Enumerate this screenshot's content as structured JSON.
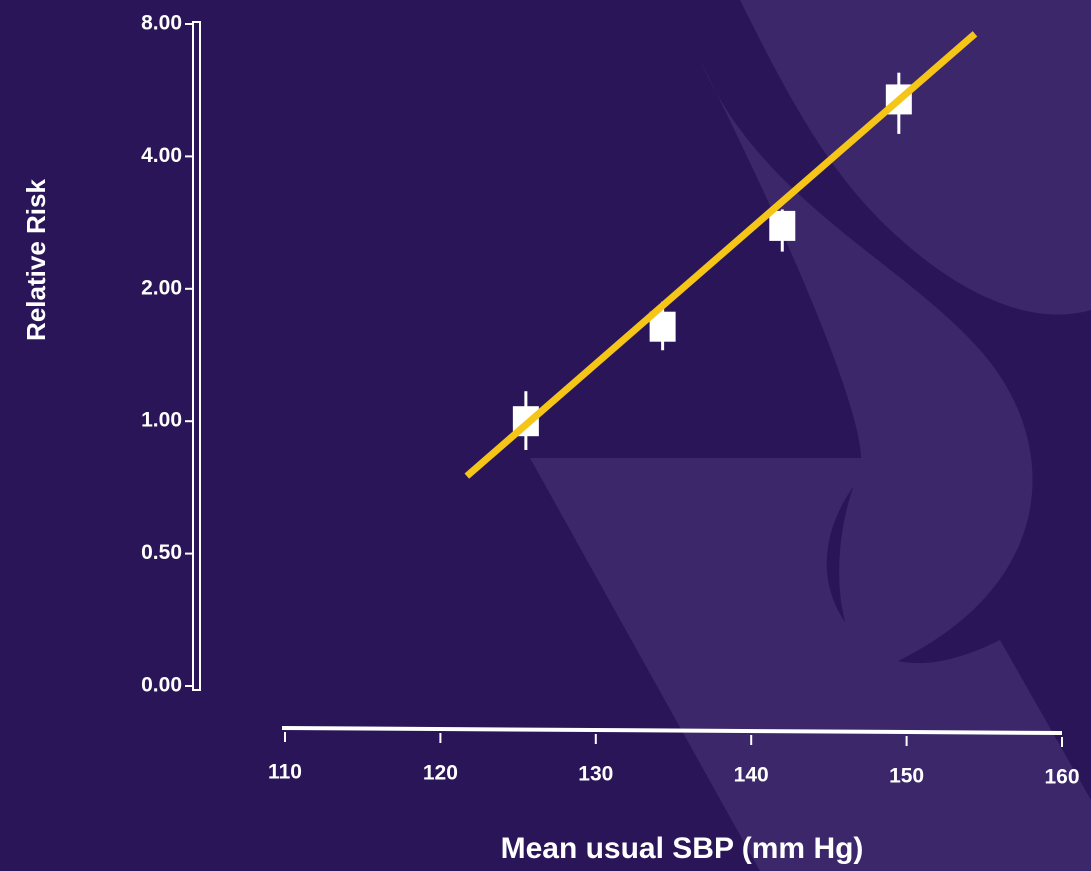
{
  "chart_data": {
    "type": "scatter",
    "y_label": "Relative Risk",
    "x_label": "Mean usual SBP (mm Hg)",
    "yscale": "log",
    "ylim": [
      0,
      8
    ],
    "yticks": [
      {
        "value": 0,
        "label": "0.00"
      },
      {
        "value": 0.5,
        "label": "0.50"
      },
      {
        "value": 1,
        "label": "1.00"
      },
      {
        "value": 2,
        "label": "2.00"
      },
      {
        "value": 4,
        "label": "4.00"
      },
      {
        "value": 8,
        "label": "8.00"
      }
    ],
    "xlim": [
      110,
      160
    ],
    "xticks": [
      110,
      120,
      130,
      140,
      150,
      160
    ],
    "series": [
      {
        "color": "#ffffff",
        "x": [
          125.5,
          134.3,
          142.0,
          149.5
        ],
        "values": [
          1.0,
          1.64,
          2.78,
          5.39
        ],
        "lower": [
          0.86,
          1.45,
          2.43,
          4.5
        ],
        "upper": [
          1.17,
          1.87,
          3.03,
          6.2
        ]
      }
    ],
    "fit_line": {
      "color": "#f5c518",
      "x": [
        121.7,
        154.4
      ],
      "values": [
        0.75,
        7.6
      ]
    }
  }
}
